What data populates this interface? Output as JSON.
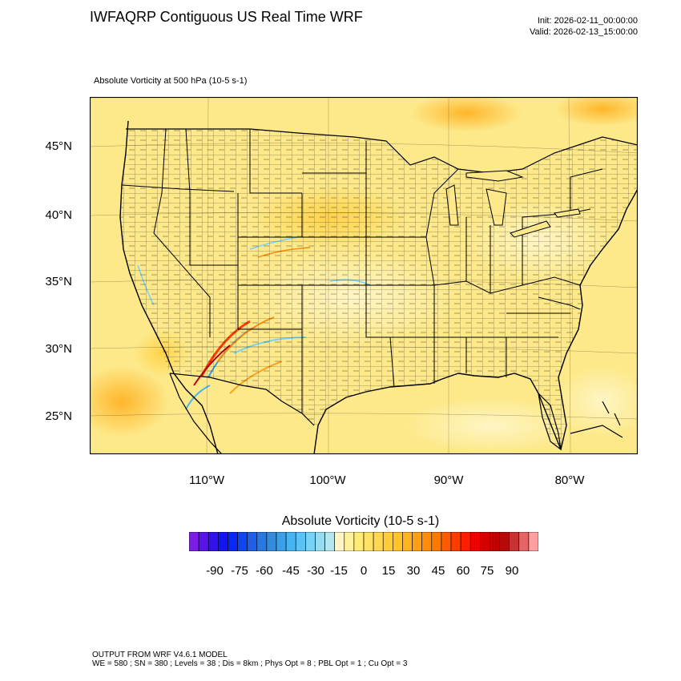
{
  "header": {
    "title": "IWFAQRP Contiguous US Real Time WRF",
    "init": "Init: 2026-02-11_00:00:00",
    "valid": "Valid: 2026-02-13_15:00:00"
  },
  "field_label": "Absolute Vorticity at 500 hPa   (10-5 s-1)",
  "map": {
    "lat_labels": [
      "45°N",
      "40°N",
      "35°N",
      "30°N",
      "25°N"
    ],
    "lon_labels": [
      "110°W",
      "100°W",
      "90°W",
      "80°W"
    ],
    "background_color": "#fde98a",
    "border_color": "#000000"
  },
  "colorbar": {
    "title": "Absolute Vorticity  (10-5 s-1)",
    "tick_labels": [
      "-90",
      "-75",
      "-60",
      "-45",
      "-30",
      "-15",
      "0",
      "15",
      "30",
      "45",
      "60",
      "75",
      "90"
    ],
    "colors": [
      "#7a1ee6",
      "#5a14e6",
      "#3212ea",
      "#1414f0",
      "#0a28f5",
      "#0f46f0",
      "#1e5fe6",
      "#2878e1",
      "#328cdc",
      "#3ca0e6",
      "#46b4f0",
      "#5ac3f5",
      "#78d2f5",
      "#96dcf0",
      "#b4e6f0",
      "#fff5c8",
      "#fff09b",
      "#ffeb78",
      "#ffe164",
      "#ffd750",
      "#ffcd3c",
      "#ffc328",
      "#ffb41e",
      "#ffa014",
      "#ff8c0a",
      "#ff7800",
      "#ff5a00",
      "#ff3c00",
      "#ff1e00",
      "#f00000",
      "#d70000",
      "#c30000",
      "#b40a0a",
      "#c83232",
      "#e66464",
      "#ffa0a0"
    ]
  },
  "footer": {
    "line1": "OUTPUT FROM WRF V4.6.1 MODEL",
    "line2": "WE = 580 ; SN = 380 ; Levels = 38 ; Dis = 8km ; Phys Opt = 8 ; PBL Opt = 1 ; Cu Opt = 3"
  }
}
